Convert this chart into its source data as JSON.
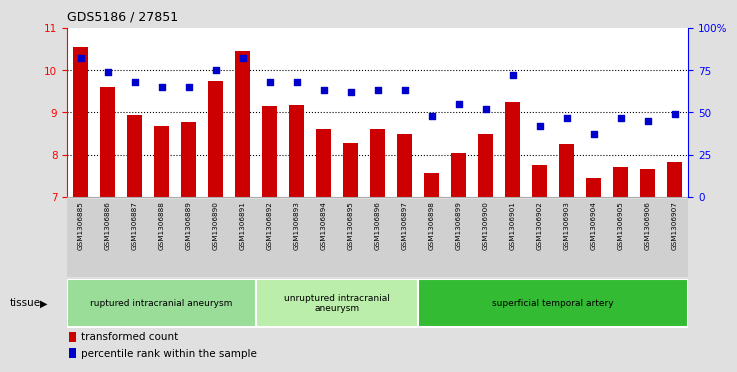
{
  "title": "GDS5186 / 27851",
  "samples": [
    "GSM1306885",
    "GSM1306886",
    "GSM1306887",
    "GSM1306888",
    "GSM1306889",
    "GSM1306890",
    "GSM1306891",
    "GSM1306892",
    "GSM1306893",
    "GSM1306894",
    "GSM1306895",
    "GSM1306896",
    "GSM1306897",
    "GSM1306898",
    "GSM1306899",
    "GSM1306900",
    "GSM1306901",
    "GSM1306902",
    "GSM1306903",
    "GSM1306904",
    "GSM1306905",
    "GSM1306906",
    "GSM1306907"
  ],
  "bar_values": [
    10.55,
    9.6,
    8.95,
    8.68,
    8.78,
    9.75,
    10.45,
    9.15,
    9.18,
    8.6,
    8.28,
    8.6,
    8.5,
    7.57,
    8.05,
    8.5,
    9.25,
    7.75,
    8.25,
    7.45,
    7.7,
    7.65,
    7.82
  ],
  "scatter_values": [
    82,
    74,
    68,
    65,
    65,
    75,
    82,
    68,
    68,
    63,
    62,
    63,
    63,
    48,
    55,
    52,
    72,
    42,
    47,
    37,
    47,
    45,
    49
  ],
  "bar_color": "#cc0000",
  "scatter_color": "#0000cc",
  "ylim_left": [
    7,
    11
  ],
  "ylim_right": [
    0,
    100
  ],
  "yticks_left": [
    7,
    8,
    9,
    10,
    11
  ],
  "yticks_right": [
    0,
    25,
    50,
    75,
    100
  ],
  "ytick_labels_right": [
    "0",
    "25",
    "50",
    "75",
    "100%"
  ],
  "groups": [
    {
      "label": "ruptured intracranial aneurysm",
      "start": 0,
      "end": 7,
      "color": "#99dd99"
    },
    {
      "label": "unruptured intracranial\naneurysm",
      "start": 7,
      "end": 13,
      "color": "#bbeeaa"
    },
    {
      "label": "superficial temporal artery",
      "start": 13,
      "end": 23,
      "color": "#33bb33"
    }
  ],
  "tissue_label": "tissue",
  "legend_bar_label": "transformed count",
  "legend_scatter_label": "percentile rank within the sample",
  "bg_color": "#e0e0e0",
  "plot_bg_color": "#ffffff",
  "xtick_bg_color": "#d0d0d0"
}
